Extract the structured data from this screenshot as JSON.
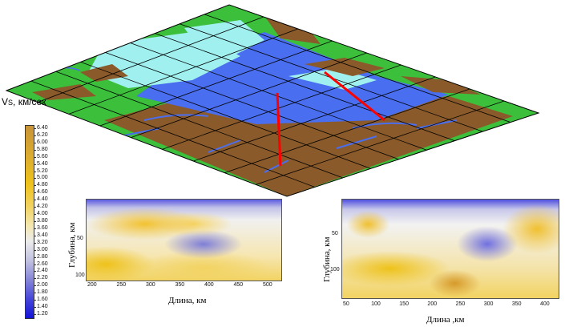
{
  "colorbar": {
    "title_v": "V",
    "title_sub": "S",
    "title_rest": ", км/сек",
    "labels": [
      "6.40",
      "6.20",
      "6.00",
      "5.80",
      "5.60",
      "5.40",
      "5.20",
      "5.00",
      "4.80",
      "4.60",
      "4.40",
      "4.20",
      "4.00",
      "3.80",
      "3.60",
      "3.40",
      "3.20",
      "3.00",
      "2.80",
      "2.60",
      "2.40",
      "2.20",
      "2.00",
      "1.80",
      "1.60",
      "1.40",
      "1.20"
    ]
  },
  "section_left": {
    "ylabel": "Глубина, км",
    "xlabel": "Длина, км",
    "x_ticks": [
      "200",
      "250",
      "300",
      "350",
      "400",
      "450",
      "500"
    ],
    "y_ticks": [
      "50",
      "100"
    ]
  },
  "section_right": {
    "ylabel": "Глубина, км",
    "xlabel": "Длина ,км",
    "x_ticks": [
      "50",
      "100",
      "150",
      "200",
      "250",
      "300",
      "350",
      "400"
    ],
    "y_ticks": [
      "50",
      "100"
    ]
  },
  "map": {
    "colors": {
      "land": "#3cc03c",
      "upland": "#8a5a2a",
      "water": "#4a6ef0",
      "shelf": "#a0f0f0",
      "profile": "#ff0000"
    }
  }
}
